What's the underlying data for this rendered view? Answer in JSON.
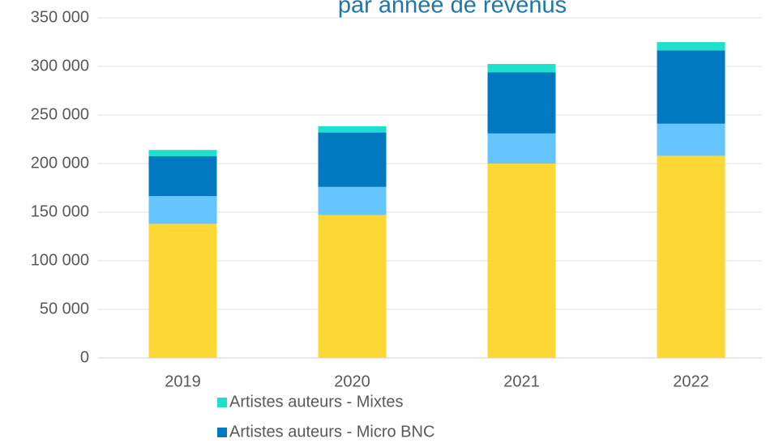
{
  "chart_data": {
    "type": "bar",
    "stacked": true,
    "title": "par année de revenus",
    "categories": [
      "2019",
      "2020",
      "2021",
      "2022"
    ],
    "series": [
      {
        "color": "#fdd835",
        "values": [
          138000,
          147000,
          200000,
          208000
        ]
      },
      {
        "color": "#66c5ff",
        "values": [
          28500,
          29000,
          31000,
          33000
        ]
      },
      {
        "name": "Artistes auteurs - Micro BNC",
        "color": "#0079c1",
        "values": [
          41000,
          56000,
          63000,
          75500
        ]
      },
      {
        "name": "Artistes auteurs - Mixtes",
        "color": "#1fe0cc",
        "values": [
          6500,
          6500,
          8500,
          8500
        ]
      }
    ],
    "ylim": [
      0,
      350000
    ],
    "yticks": [
      0,
      {
        "value": 50000,
        "label": "50 000"
      },
      {
        "value": 100000,
        "label": "100 000"
      },
      {
        "value": 150000,
        "label": "150 000"
      },
      {
        "value": 200000,
        "label": "200 000"
      },
      {
        "value": 250000,
        "label": "250 000"
      },
      {
        "value": 300000,
        "label": "300 000"
      },
      {
        "value": 350000,
        "label": "350 000"
      }
    ],
    "grid": true,
    "legend": "bottom"
  }
}
